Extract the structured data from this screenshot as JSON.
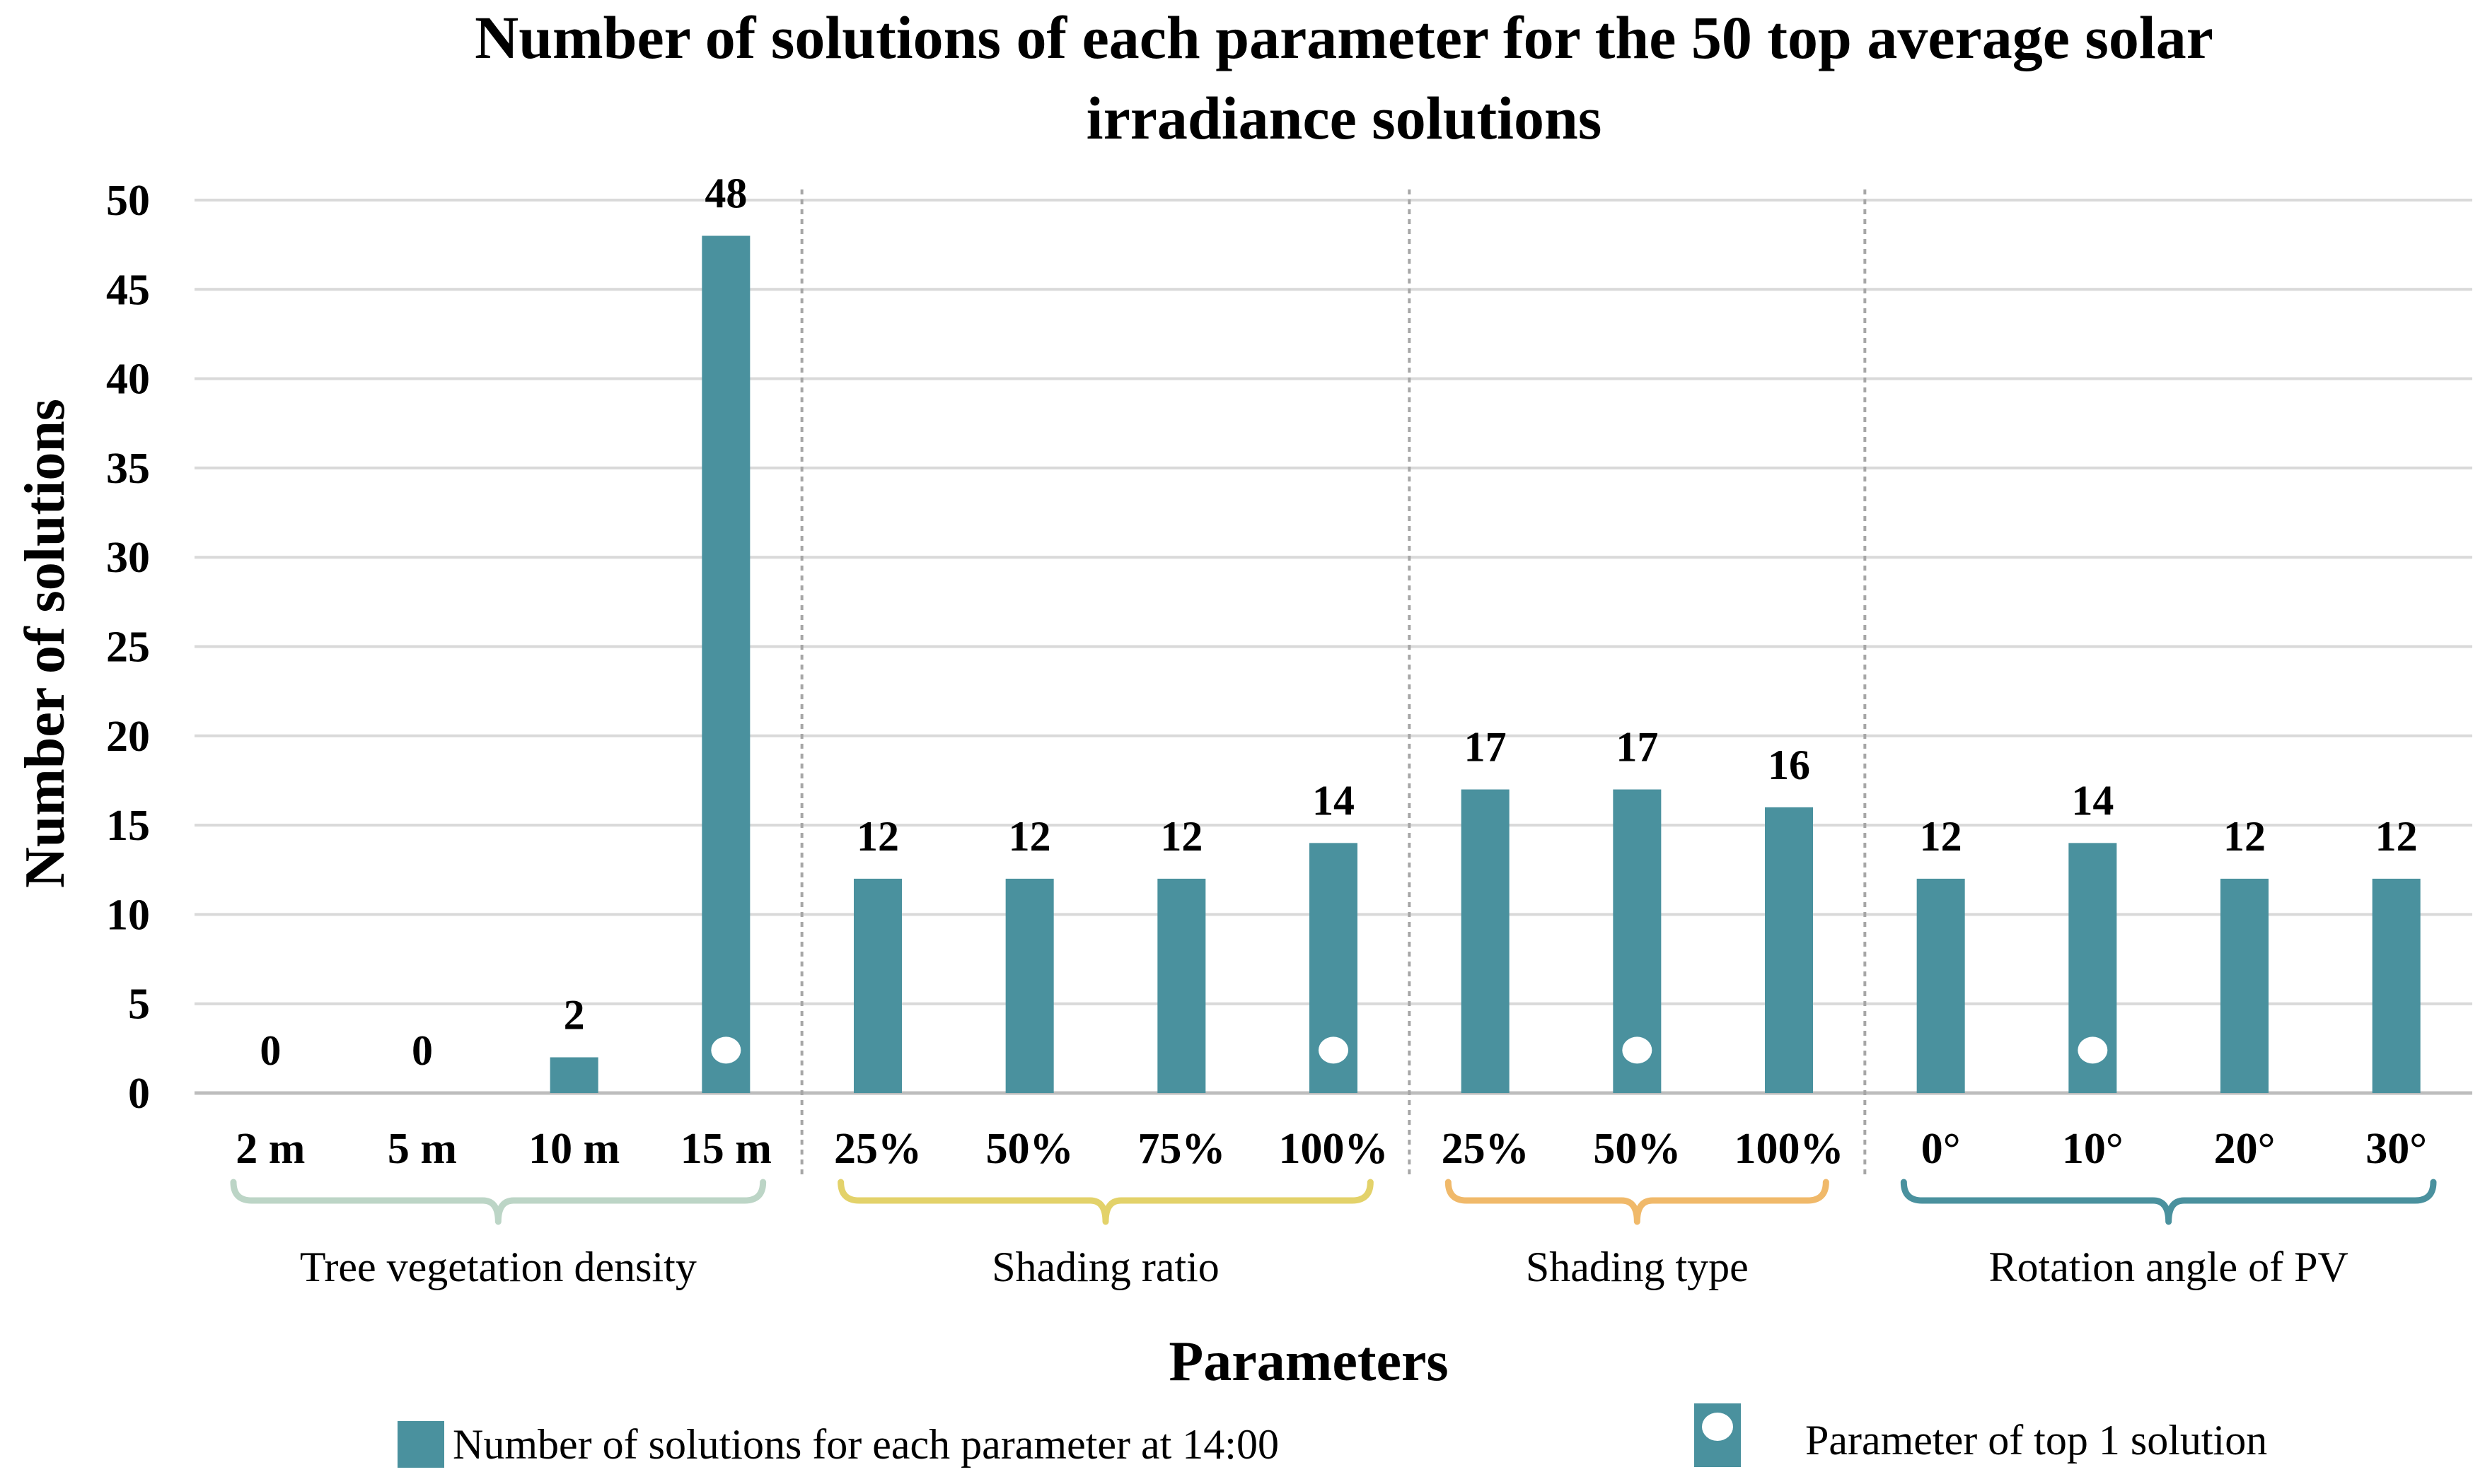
{
  "chart_data": {
    "type": "bar",
    "title_lines": [
      "Number of solutions of each parameter for the 50 top average solar",
      "irradiance solutions"
    ],
    "xlabel": "Parameters",
    "ylabel": "Number of solutions",
    "ylim": [
      0,
      50
    ],
    "yticks": [
      "0",
      "5",
      "10",
      "15",
      "20",
      "25",
      "30",
      "35",
      "40",
      "45",
      "50"
    ],
    "bar_color": "#4A919E",
    "marker_color": "#FFFFFF",
    "grid": true,
    "categories": [
      "2 m",
      "5 m",
      "10 m",
      "15 m",
      "25%",
      "50%",
      "75%",
      "100%",
      "25%",
      "50%",
      "100%",
      "0°",
      "10°",
      "20°",
      "30°"
    ],
    "values": [
      0,
      0,
      2,
      48,
      12,
      12,
      12,
      14,
      17,
      17,
      16,
      12,
      14,
      12,
      12
    ],
    "data_labels": [
      "0",
      "0",
      "2",
      "48",
      "12",
      "12",
      "12",
      "14",
      "17",
      "17",
      "16",
      "12",
      "14",
      "12",
      "12"
    ],
    "top_solution": [
      false,
      false,
      false,
      true,
      false,
      false,
      false,
      true,
      false,
      true,
      false,
      false,
      true,
      false,
      false
    ],
    "groups": [
      {
        "name": "Tree vegetation density",
        "count": 4,
        "color": "#BCD5C6"
      },
      {
        "name": "Shading ratio",
        "count": 4,
        "color": "#E3D26A"
      },
      {
        "name": "Shading type",
        "count": 3,
        "color": "#F0B96A"
      },
      {
        "name": "Rotation angle of PV",
        "count": 4,
        "color": "#4A919E"
      }
    ],
    "legend": {
      "bars": "Number of solutions for each parameter at 14:00",
      "marker": "Parameter of top 1 solution"
    }
  }
}
